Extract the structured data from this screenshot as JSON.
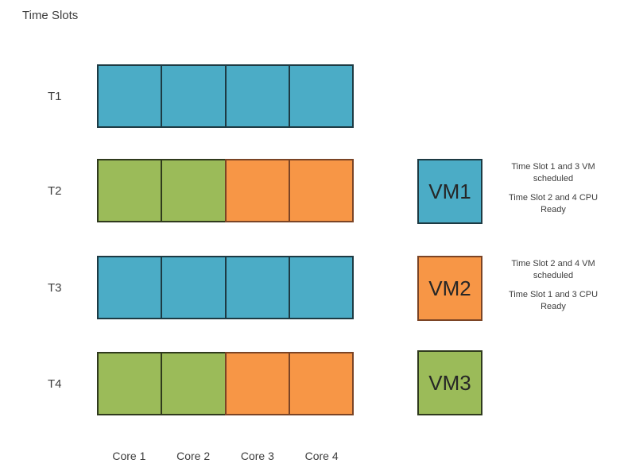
{
  "title": "Time Slots",
  "colors": {
    "blue": "#4BACC6",
    "green": "#9BBB59",
    "orange": "#F79646"
  },
  "border_colors": {
    "blue": "#1d3a43",
    "green": "#2f3a1d",
    "orange": "#7b4425"
  },
  "grid": {
    "rows": [
      {
        "label": "T1",
        "cells": [
          "blue",
          "blue",
          "blue",
          "blue"
        ]
      },
      {
        "label": "T2",
        "cells": [
          "green",
          "green",
          "orange",
          "orange"
        ]
      },
      {
        "label": "T3",
        "cells": [
          "blue",
          "blue",
          "blue",
          "blue"
        ]
      },
      {
        "label": "T4",
        "cells": [
          "green",
          "green",
          "orange",
          "orange"
        ]
      }
    ],
    "columns": [
      "Core 1",
      "Core 2",
      "Core 3",
      "Core 4"
    ]
  },
  "legend": [
    {
      "label": "VM1",
      "color": "blue",
      "notes": [
        "Time Slot 1 and 3 VM scheduled",
        "Time Slot 2 and 4 CPU Ready"
      ]
    },
    {
      "label": "VM2",
      "color": "orange",
      "notes": [
        "Time Slot 2 and 4 VM scheduled",
        "Time Slot 1 and 3 CPU Ready"
      ]
    },
    {
      "label": "VM3",
      "color": "green",
      "notes": []
    }
  ]
}
